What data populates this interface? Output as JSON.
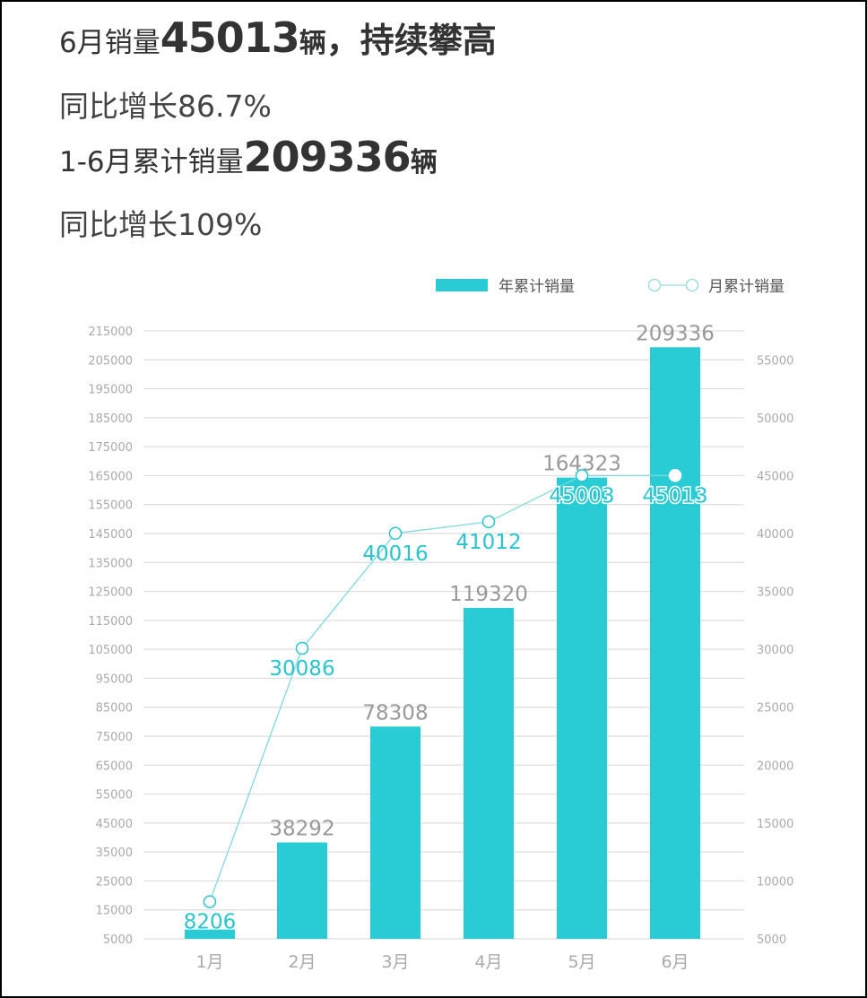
{
  "headline": {
    "line1_prefix": "6月销量",
    "line1_number": "45013",
    "line1_unit": "辆",
    "line1_suffix": "，持续攀高",
    "line2": "同比增长86.7%",
    "line3_prefix": "1-6月累计销量",
    "line3_number": "209336",
    "line3_unit": "辆",
    "line4": "同比增长109%"
  },
  "legend": {
    "bar_label": "年累计销量",
    "line_label": "月累计销量"
  },
  "colors": {
    "bar": "#29CCD4",
    "line": "#7FD8DE",
    "line_label": "#29C4CC",
    "bar_label": "#999999",
    "axis_text": "#AAAAAA",
    "grid": "#DDDDDD"
  },
  "chart_data": {
    "type": "bar+line",
    "title": "6月销量45013辆，持续攀高",
    "categories": [
      "1月",
      "2月",
      "3月",
      "4月",
      "5月",
      "6月"
    ],
    "series": [
      {
        "name": "年累计销量",
        "type": "bar",
        "axis": "left",
        "values": [
          8206,
          38292,
          78308,
          119320,
          164323,
          209336
        ]
      },
      {
        "name": "月累计销量",
        "type": "line",
        "axis": "right",
        "values": [
          8206,
          30086,
          40016,
          41012,
          45003,
          45013
        ]
      }
    ],
    "left_axis": {
      "ticks": [
        215000,
        205000,
        195000,
        185000,
        175000,
        165000,
        155000,
        145000,
        135000,
        125000,
        115000,
        105000,
        95000,
        85000,
        75000,
        65000,
        55000,
        45000,
        35000,
        25000,
        15000,
        5000
      ],
      "ylim": [
        5000,
        215000
      ]
    },
    "right_axis": {
      "ticks": [
        55000,
        50000,
        45000,
        40000,
        35000,
        30000,
        25000,
        20000,
        15000,
        10000,
        5000
      ],
      "ylim": [
        5000,
        57500
      ]
    },
    "xlabel": "",
    "ylabel": "",
    "grid": true,
    "legend_position": "top-right"
  }
}
